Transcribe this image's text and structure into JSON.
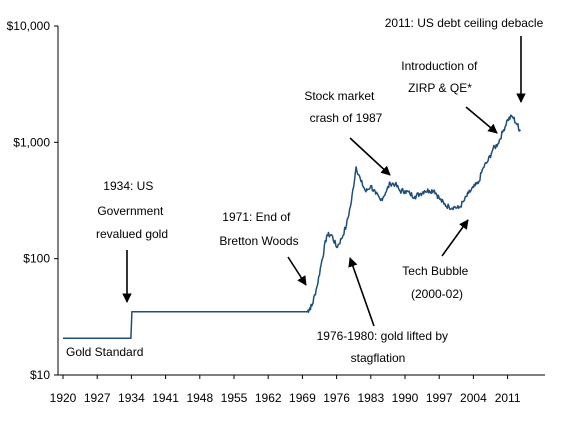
{
  "chart_data": {
    "type": "line",
    "title": "",
    "xlabel": "",
    "ylabel": "",
    "y_scale": "log",
    "ylim": [
      10,
      10000
    ],
    "xlim": [
      1920,
      2015
    ],
    "grid": false,
    "y_ticks": [
      {
        "value": 10000,
        "label": "$10,000"
      },
      {
        "value": 1000,
        "label": "$1,000"
      },
      {
        "value": 100,
        "label": "$100"
      },
      {
        "value": 10,
        "label": "$10"
      }
    ],
    "x_ticks": [
      {
        "value": 1920,
        "label": "1920"
      },
      {
        "value": 1927,
        "label": "1927"
      },
      {
        "value": 1934,
        "label": "1934"
      },
      {
        "value": 1941,
        "label": "1941"
      },
      {
        "value": 1948,
        "label": "1948"
      },
      {
        "value": 1955,
        "label": "1955"
      },
      {
        "value": 1962,
        "label": "1962"
      },
      {
        "value": 1969,
        "label": "1969"
      },
      {
        "value": 1976,
        "label": "1976"
      },
      {
        "value": 1983,
        "label": "1983"
      },
      {
        "value": 1990,
        "label": "1990"
      },
      {
        "value": 1997,
        "label": "1997"
      },
      {
        "value": 2004,
        "label": "2004"
      },
      {
        "value": 2011,
        "label": "2011"
      }
    ],
    "series": [
      {
        "color": "#1f4e79",
        "points": [
          [
            1920,
            20.67
          ],
          [
            1933.9,
            20.67
          ],
          [
            1934.1,
            35
          ],
          [
            1970,
            35
          ],
          [
            1970.5,
            37.5
          ],
          [
            1971,
            40
          ],
          [
            1972,
            58
          ],
          [
            1973,
            97
          ],
          [
            1974,
            159
          ],
          [
            1975,
            160
          ],
          [
            1976,
            125
          ],
          [
            1977,
            148
          ],
          [
            1978,
            193
          ],
          [
            1979,
            306
          ],
          [
            1980,
            615
          ],
          [
            1981,
            460
          ],
          [
            1982,
            376
          ],
          [
            1983,
            424
          ],
          [
            1984,
            360
          ],
          [
            1985,
            317
          ],
          [
            1986,
            368
          ],
          [
            1987,
            446
          ],
          [
            1988,
            437
          ],
          [
            1989,
            381
          ],
          [
            1990,
            383
          ],
          [
            1991,
            362
          ],
          [
            1992,
            343
          ],
          [
            1993,
            360
          ],
          [
            1994,
            384
          ],
          [
            1995,
            384
          ],
          [
            1996,
            388
          ],
          [
            1997,
            331
          ],
          [
            1998,
            294
          ],
          [
            1999,
            279
          ],
          [
            2000,
            279
          ],
          [
            2001,
            271
          ],
          [
            2002,
            310
          ],
          [
            2003,
            363
          ],
          [
            2004,
            409
          ],
          [
            2005,
            444
          ],
          [
            2006,
            604
          ],
          [
            2007,
            695
          ],
          [
            2008,
            872
          ],
          [
            2009,
            972
          ],
          [
            2010,
            1225
          ],
          [
            2011,
            1572
          ],
          [
            2012,
            1669
          ],
          [
            2013,
            1411
          ],
          [
            2013.6,
            1250
          ]
        ]
      }
    ],
    "annotations": [
      {
        "id": "gold-standard",
        "lines": [
          "Gold Standard"
        ]
      },
      {
        "id": "1934",
        "lines": [
          "1934: US",
          "Government",
          "revalued gold"
        ]
      },
      {
        "id": "1971",
        "lines": [
          "1971: End of",
          "Bretton Woods"
        ]
      },
      {
        "id": "1976",
        "lines": [
          "1976-1980: gold lifted by",
          "stagflation"
        ]
      },
      {
        "id": "1987",
        "lines": [
          "Stock market",
          "crash of 1987"
        ]
      },
      {
        "id": "tech",
        "lines": [
          "Tech Bubble",
          "(2000-02)"
        ]
      },
      {
        "id": "zirp",
        "lines": [
          "Introduction of",
          "ZIRP & QE*"
        ]
      },
      {
        "id": "2011",
        "lines": [
          "2011: US debt ceiling debacle"
        ]
      }
    ]
  }
}
